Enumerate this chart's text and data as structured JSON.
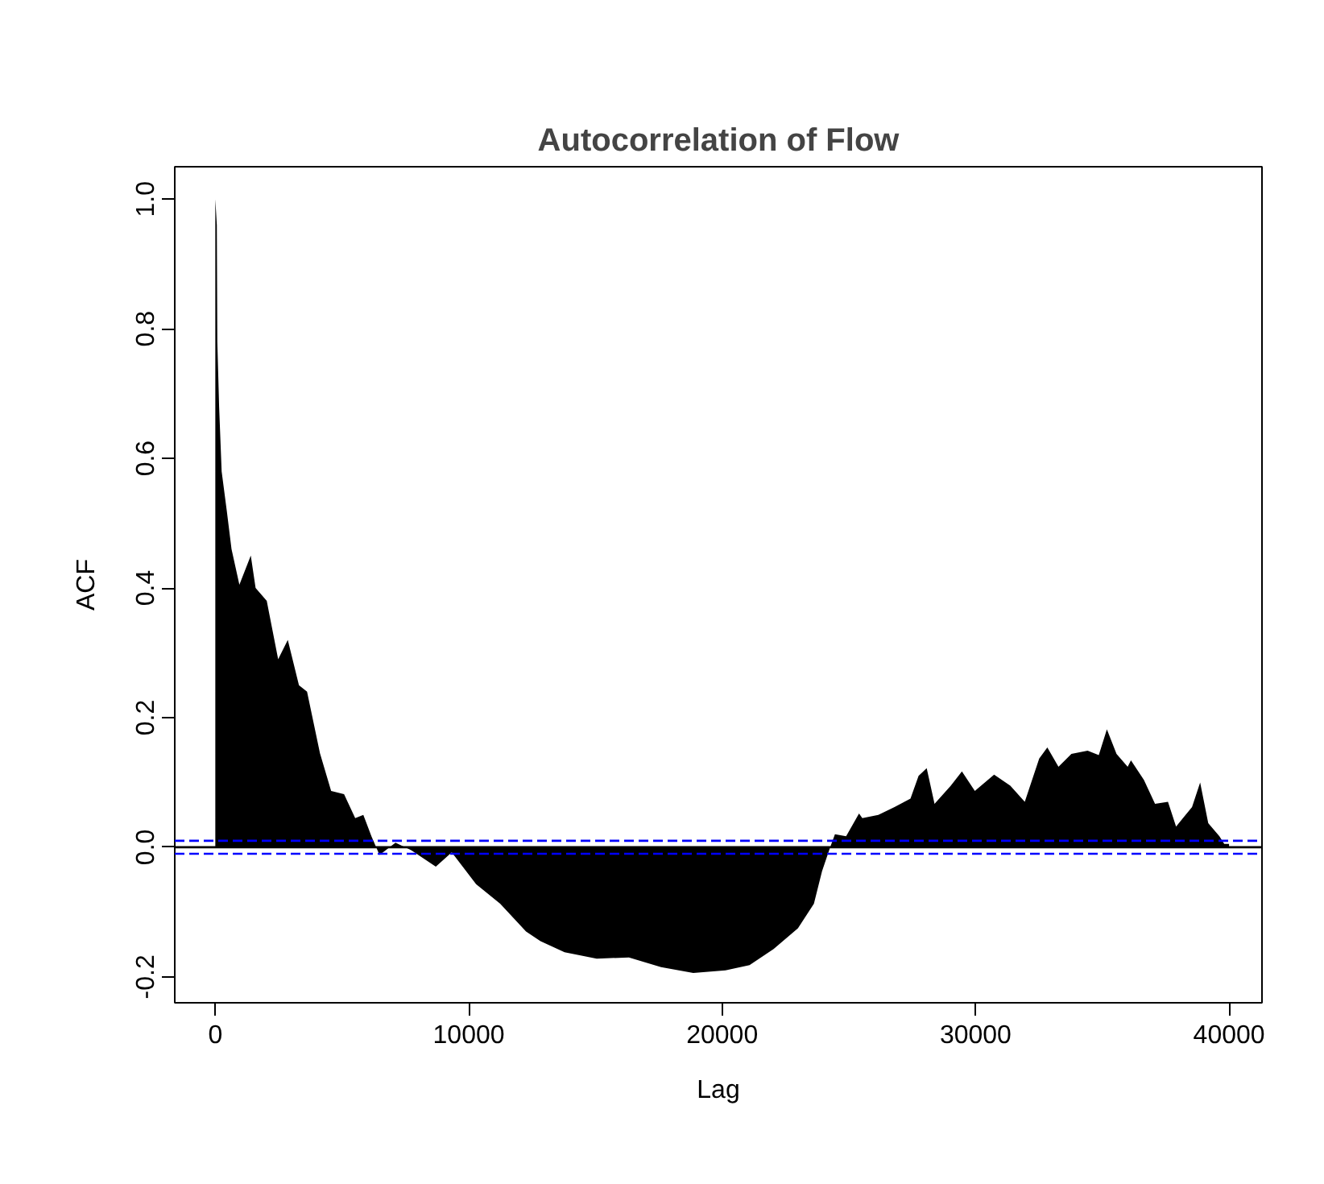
{
  "chart_data": {
    "type": "area",
    "title": "Autocorrelation of Flow",
    "xlabel": "Lag",
    "ylabel": "ACF",
    "x": [
      0,
      60,
      80,
      150,
      250,
      450,
      640,
      950,
      1400,
      1590,
      2030,
      2480,
      2860,
      3300,
      3620,
      4130,
      4570,
      5080,
      5520,
      5840,
      6160,
      6480,
      7110,
      7750,
      8700,
      9330,
      10290,
      11240,
      12260,
      12830,
      13780,
      15050,
      16320,
      17590,
      18860,
      20130,
      21080,
      22030,
      22990,
      23620,
      23940,
      24260,
      24450,
      24890,
      25400,
      25530,
      26160,
      26800,
      27430,
      27750,
      28070,
      28380,
      29020,
      29460,
      29970,
      30730,
      31370,
      31940,
      32510,
      32830,
      33270,
      33780,
      34420,
      34860,
      35180,
      35560,
      36000,
      36130,
      36640,
      37080,
      37590,
      37910,
      38540,
      38860,
      39180,
      39620,
      39810,
      40000
    ],
    "series": [
      {
        "color": "#000000",
        "values": [
          1.0,
          0.96,
          0.78,
          0.68,
          0.58,
          0.52,
          0.46,
          0.405,
          0.45,
          0.4,
          0.38,
          0.29,
          0.32,
          0.25,
          0.24,
          0.145,
          0.087,
          0.082,
          0.045,
          0.05,
          0.017,
          -0.012,
          0.007,
          -0.005,
          -0.03,
          -0.008,
          -0.057,
          -0.087,
          -0.13,
          -0.145,
          -0.162,
          -0.172,
          -0.17,
          -0.185,
          -0.194,
          -0.19,
          -0.182,
          -0.157,
          -0.125,
          -0.087,
          -0.037,
          0.0,
          0.02,
          0.017,
          0.052,
          0.045,
          0.05,
          0.062,
          0.075,
          0.11,
          0.122,
          0.067,
          0.095,
          0.117,
          0.087,
          0.112,
          0.095,
          0.07,
          0.137,
          0.154,
          0.124,
          0.144,
          0.149,
          0.142,
          0.182,
          0.144,
          0.124,
          0.134,
          0.104,
          0.067,
          0.07,
          0.032,
          0.062,
          0.1,
          0.037,
          0.017,
          0.005,
          0.005
        ]
      }
    ],
    "xlim": [
      -1600,
      41300
    ],
    "ylim": [
      -0.24,
      1.05
    ],
    "xticks": [
      0,
      10000,
      20000,
      30000,
      40000
    ],
    "yticks": [
      {
        "value": -0.2,
        "label": "-0.2"
      },
      {
        "value": 0,
        "label": "0.0"
      },
      {
        "value": 0.2,
        "label": "0.2"
      },
      {
        "value": 0.4,
        "label": "0.4"
      },
      {
        "value": 0.6,
        "label": "0.6"
      },
      {
        "value": 0.8,
        "label": "0.8"
      },
      {
        "value": 1.0,
        "label": "1.0"
      }
    ],
    "ref_lines": [
      {
        "axis": "y",
        "value": 0,
        "color": "#000000",
        "line_style": "solid"
      },
      {
        "axis": "y",
        "value": 0.01,
        "color": "#0000ff",
        "line_style": "dashed"
      },
      {
        "axis": "y",
        "value": -0.01,
        "color": "#0000ff",
        "line_style": "dashed"
      }
    ],
    "grid": false
  }
}
